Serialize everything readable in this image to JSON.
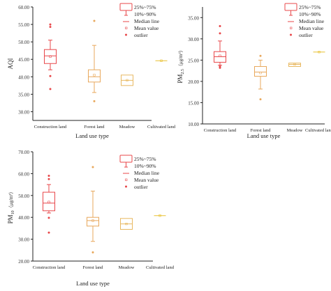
{
  "colors": {
    "construction": "#e8474a",
    "forest": "#e8a85c",
    "meadow": "#e8b860",
    "cultivated": "#e8c030",
    "axis": "#222222"
  },
  "legend": {
    "items": [
      "25%~75%",
      "10%~90%",
      "Median line",
      "Mean value",
      "outlier"
    ]
  },
  "chart_data": [
    {
      "type": "box",
      "xlabel": "Land use type",
      "ylabel": "AQI",
      "ylabel_sub": "",
      "ylabel_unit": "",
      "ylim": [
        27.5,
        60
      ],
      "yticks": [
        30.0,
        35.0,
        40.0,
        45.0,
        50.0,
        55.0,
        60.0
      ],
      "ytick_labels": [
        "30.00",
        "35.00",
        "40.00",
        "45.00",
        "50.00",
        "55.00",
        "60.00"
      ],
      "categories": [
        "Construction land",
        "Forest land",
        "Meadow",
        "Cultivated land"
      ],
      "boxes": [
        {
          "q1": 43.8,
          "median": 46.0,
          "q3": 47.8,
          "low": 42.0,
          "high": 50.5,
          "mean": 45.8,
          "outliers": [
            55.0,
            54.3,
            40.2,
            36.5
          ]
        },
        {
          "q1": 38.5,
          "median": 40.0,
          "q3": 42.0,
          "low": 35.5,
          "high": 49.0,
          "mean": 40.5,
          "outliers": [
            56.0,
            33.0
          ]
        },
        {
          "q1": 37.5,
          "median": 39.0,
          "q3": 40.5,
          "low": 37.5,
          "high": 40.5,
          "mean": 39.0,
          "outliers": []
        },
        {
          "q1": 44.6,
          "median": 44.6,
          "q3": 44.6,
          "low": 44.6,
          "high": 44.6,
          "mean": 44.6,
          "outliers": []
        }
      ]
    },
    {
      "type": "box",
      "xlabel": "Land use type",
      "ylabel": "PM",
      "ylabel_sub": "2.5",
      "ylabel_unit": "（μg/m³）",
      "ylim": [
        10,
        37.5
      ],
      "yticks": [
        10.0,
        15.0,
        20.0,
        25.0,
        30.0,
        35.0
      ],
      "ytick_labels": [
        "10.00",
        "15.00",
        "20.00",
        "25.00",
        "30.00",
        "35.00"
      ],
      "categories": [
        "Construction land",
        "Forest land",
        "Meadow",
        "Cultivated land"
      ],
      "boxes": [
        {
          "q1": 24.5,
          "median": 25.8,
          "q3": 27.0,
          "low": 23.8,
          "high": 29.5,
          "mean": 26.0,
          "outliers": [
            33.0,
            31.3,
            23.5,
            23.2
          ]
        },
        {
          "q1": 21.2,
          "median": 22.2,
          "q3": 23.5,
          "low": 18.2,
          "high": 25.0,
          "mean": 22.0,
          "outliers": [
            26.0,
            15.8
          ]
        },
        {
          "q1": 23.5,
          "median": 24.0,
          "q3": 24.3,
          "low": 23.5,
          "high": 24.3,
          "mean": 24.0,
          "outliers": []
        },
        {
          "q1": 26.9,
          "median": 26.9,
          "q3": 26.9,
          "low": 26.9,
          "high": 26.9,
          "mean": 26.9,
          "outliers": []
        }
      ]
    },
    {
      "type": "box",
      "xlabel": "Land use type",
      "ylabel": "PM",
      "ylabel_sub": "10",
      "ylabel_unit": "（μg/m³）",
      "ylim": [
        20,
        70
      ],
      "yticks": [
        20.0,
        30.0,
        40.0,
        50.0,
        60.0,
        70.0
      ],
      "ytick_labels": [
        "20.00",
        "30.00",
        "40.00",
        "50.00",
        "60.00",
        "70.00"
      ],
      "categories": [
        "Construction land",
        "Forest land",
        "Meadow",
        "Cultivated land"
      ],
      "boxes": [
        {
          "q1": 43.0,
          "median": 46.5,
          "q3": 51.5,
          "low": 42.0,
          "high": 55.0,
          "mean": 47.0,
          "outliers": [
            59.0,
            57.5,
            39.8,
            33.0
          ]
        },
        {
          "q1": 36.0,
          "median": 38.5,
          "q3": 40.0,
          "low": 29.0,
          "high": 52.0,
          "mean": 38.5,
          "outliers": [
            63.0,
            24.0
          ]
        },
        {
          "q1": 34.5,
          "median": 37.0,
          "q3": 39.5,
          "low": 34.5,
          "high": 39.5,
          "mean": 37.0,
          "outliers": []
        },
        {
          "q1": 40.8,
          "median": 40.8,
          "q3": 40.8,
          "low": 40.8,
          "high": 40.8,
          "mean": 40.8,
          "outliers": []
        }
      ]
    }
  ]
}
